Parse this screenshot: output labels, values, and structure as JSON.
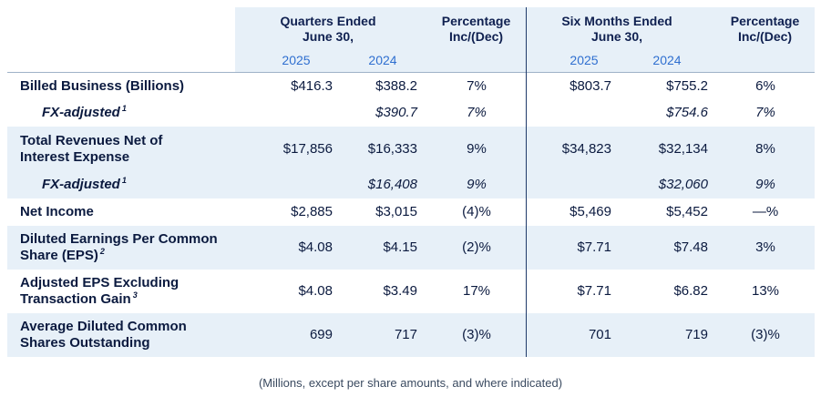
{
  "header": {
    "quarters": "Quarters Ended\nJune 30,",
    "pct": "Percentage\nInc/(Dec)",
    "six_months": "Six Months Ended\nJune 30,",
    "pct2": "Percentage\nInc/(Dec)",
    "years": [
      "2025",
      "2024",
      "2025",
      "2024"
    ]
  },
  "rows": [
    {
      "label": "Billed Business (Billions)",
      "sup": "",
      "q25": "$416.3",
      "q24": "$388.2",
      "qp": "7%",
      "s25": "$803.7",
      "s24": "$755.2",
      "sp": "6%"
    },
    {
      "label": "FX-adjusted",
      "sup": "1",
      "q25": "",
      "q24": "$390.7",
      "qp": "7%",
      "s25": "",
      "s24": "$754.6",
      "sp": "7%"
    },
    {
      "label": "Total Revenues Net of\nInterest Expense",
      "sup": "",
      "q25": "$17,856",
      "q24": "$16,333",
      "qp": "9%",
      "s25": "$34,823",
      "s24": "$32,134",
      "sp": "8%"
    },
    {
      "label": "FX-adjusted",
      "sup": "1",
      "q25": "",
      "q24": "$16,408",
      "qp": "9%",
      "s25": "",
      "s24": "$32,060",
      "sp": "9%"
    },
    {
      "label": "Net Income",
      "sup": "",
      "q25": "$2,885",
      "q24": "$3,015",
      "qp": "(4)%",
      "s25": "$5,469",
      "s24": "$5,452",
      "sp": "—%"
    },
    {
      "label": "Diluted Earnings Per Common\nShare (EPS)",
      "sup": "2",
      "q25": "$4.08",
      "q24": "$4.15",
      "qp": "(2)%",
      "s25": "$7.71",
      "s24": "$7.48",
      "sp": "3%"
    },
    {
      "label": "Adjusted  EPS Excluding\nTransaction Gain",
      "sup": "3",
      "q25": "$4.08",
      "q24": "$3.49",
      "qp": "17%",
      "s25": "$7.71",
      "s24": "$6.82",
      "sp": "13%"
    },
    {
      "label": "Average Diluted Common\nShares Outstanding",
      "sup": "",
      "q25": "699",
      "q24": "717",
      "qp": "(3)%",
      "s25": "701",
      "s24": "719",
      "sp": "(3)%"
    }
  ],
  "footer": "(Millions, except per share amounts, and where indicated)"
}
